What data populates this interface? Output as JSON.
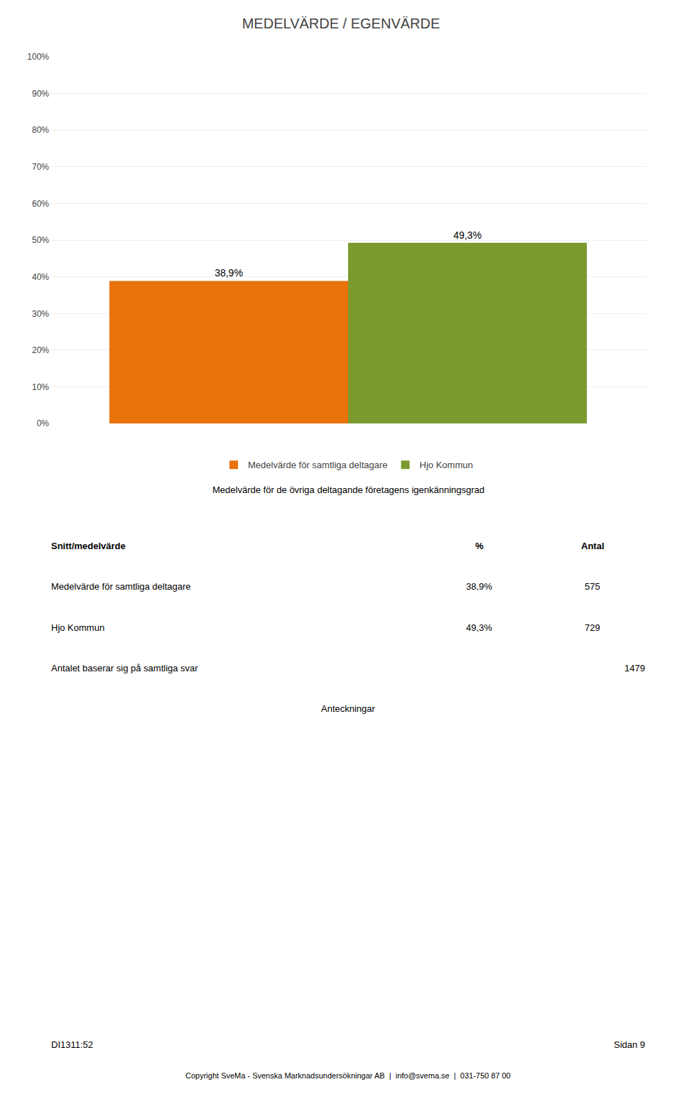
{
  "chart_data": {
    "type": "bar",
    "title": "MEDELVÄRDE / EGENVÄRDE",
    "subtitle": "Medelvärde för de övriga deltagande företagens igenkänningsgrad",
    "categories": [
      null
    ],
    "series": [
      {
        "name": "Medelvärde för samtliga deltagare",
        "color": "#E8720C",
        "values": [
          38.9
        ],
        "value_labels": [
          "38,9%"
        ]
      },
      {
        "name": "Hjo Kommun",
        "color": "#7A9A2E",
        "values": [
          49.3
        ],
        "value_labels": [
          "49,3%"
        ]
      }
    ],
    "ylim": [
      0,
      100
    ],
    "yticks": [
      {
        "value": 0,
        "label": "0%"
      },
      {
        "value": 10,
        "label": "10%"
      },
      {
        "value": 20,
        "label": "20%"
      },
      {
        "value": 30,
        "label": "30%"
      },
      {
        "value": 40,
        "label": "40%"
      },
      {
        "value": 50,
        "label": "50%"
      },
      {
        "value": 60,
        "label": "60%"
      },
      {
        "value": 70,
        "label": "70%"
      },
      {
        "value": 80,
        "label": "80%"
      },
      {
        "value": 90,
        "label": "90%"
      },
      {
        "value": 100,
        "label": "100%"
      }
    ],
    "grid": true,
    "legend": "bottom",
    "data_labels": true,
    "tick_labels": "y",
    "annotations": [
      [
        "Snitt/medelvärde",
        "%",
        "Antal"
      ],
      [
        "Medelvärde för samtliga deltagare",
        "38,9%",
        "575"
      ],
      [
        "Hjo Kommun",
        "49,3%",
        "729"
      ],
      [
        "Antalet baserar sig på samtliga svar",
        "1479"
      ],
      [
        "Anteckningar"
      ],
      [
        "DI1311:52",
        "Sidan 9"
      ],
      [
        "Copyright SveMa - Svenska Marknadsundersökningar AB  |  info@svema.se  |  031-750 87 00"
      ]
    ]
  }
}
